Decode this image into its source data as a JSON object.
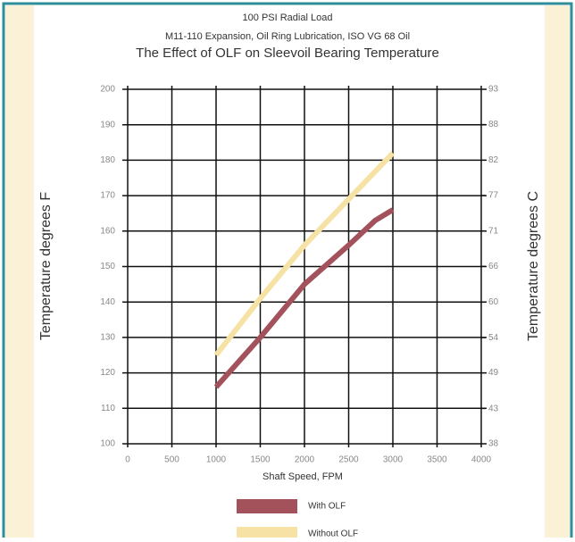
{
  "chart_data": {
    "type": "line",
    "title": "The Effect of OLF on Sleevoil Bearing Temperature",
    "subtitle": [
      "100 PSI Radial Load",
      "M11-110 Expansion, Oil Ring Lubrication, ISO VG 68 Oil"
    ],
    "x_label": "Shaft Speed, FPM",
    "y_label": "Temperature degrees F",
    "y2_label": "Temperature degrees C",
    "xlim": [
      0,
      4000
    ],
    "xticks": [
      0,
      500,
      1000,
      1500,
      2000,
      2500,
      3000,
      3500,
      4000
    ],
    "ylim": [
      100,
      200
    ],
    "yticks": [
      100,
      110,
      120,
      130,
      140,
      150,
      160,
      170,
      180,
      190,
      200
    ],
    "y2lim": [
      37.8,
      93.3
    ],
    "y2ticks": [
      {
        "value": 37.8,
        "label": "38"
      },
      {
        "value": 43.3,
        "label": "43"
      },
      {
        "value": 48.9,
        "label": "49"
      },
      {
        "value": 54.4,
        "label": "54"
      },
      {
        "value": 60,
        "label": "60"
      },
      {
        "value": 65.6,
        "label": "66"
      },
      {
        "value": 71.1,
        "label": "71"
      },
      {
        "value": 76.7,
        "label": "77"
      },
      {
        "value": 82.2,
        "label": "82"
      },
      {
        "value": 87.8,
        "label": "88"
      },
      {
        "value": 93.3,
        "label": "93"
      }
    ],
    "grid": true,
    "series": [
      {
        "name": "With OLF",
        "color": "#a3525c",
        "x": [
          1000,
          1500,
          2000,
          2500,
          2800,
          3000
        ],
        "values": [
          116,
          130,
          145,
          156,
          163,
          166
        ]
      },
      {
        "name": "Without OLF",
        "color": "#f6e2a4",
        "x": [
          1000,
          1500,
          2000,
          2500,
          3000
        ],
        "values": [
          125,
          141,
          156,
          169,
          182
        ]
      }
    ]
  }
}
